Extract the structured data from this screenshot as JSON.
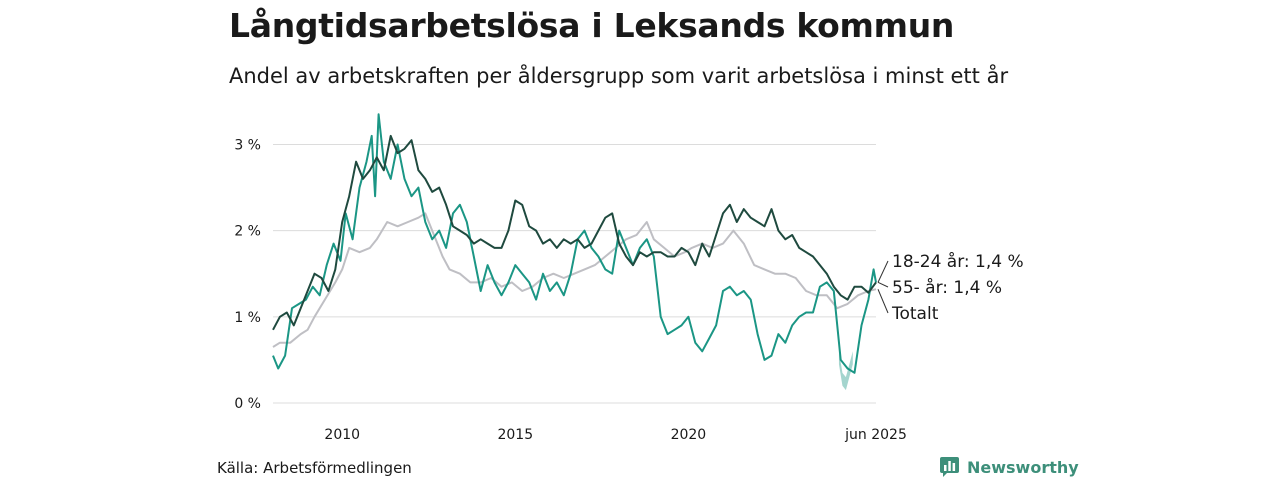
{
  "title": "Långtidsarbetslösa i Leksands kommun",
  "subtitle": "Andel av arbetskraften per åldersgrupp som varit arbetslösa i minst ett år",
  "source": "Källa: Arbetsförmedlingen",
  "brand": "Newsworthy",
  "colors": {
    "young": "#1b9685",
    "old": "#1f4a3f",
    "total": "#bfbfc4",
    "grid": "#dcdcdc",
    "text": "#1a1a1a"
  },
  "chart_data": {
    "type": "line",
    "x_ticks": [
      {
        "x": 2010,
        "label": "2010"
      },
      {
        "x": 2015,
        "label": "2015"
      },
      {
        "x": 2020,
        "label": "2020"
      },
      {
        "x": 2025.42,
        "label": "jun 2025"
      }
    ],
    "y_ticks": [
      {
        "y": 0,
        "label": "0 %"
      },
      {
        "y": 1,
        "label": "1 %"
      },
      {
        "y": 2,
        "label": "2 %"
      },
      {
        "y": 3,
        "label": "3 %"
      }
    ],
    "xlim": [
      2008.0,
      2025.42
    ],
    "ylim": [
      0,
      3.4
    ],
    "grid": true,
    "series": [
      {
        "key": "total",
        "name": "Totalt",
        "label": "Totalt",
        "points": [
          [
            2008.0,
            0.65
          ],
          [
            2008.2,
            0.7
          ],
          [
            2008.5,
            0.7
          ],
          [
            2008.8,
            0.8
          ],
          [
            2009.0,
            0.85
          ],
          [
            2009.2,
            1.0
          ],
          [
            2009.5,
            1.2
          ],
          [
            2009.8,
            1.4
          ],
          [
            2010.0,
            1.55
          ],
          [
            2010.2,
            1.8
          ],
          [
            2010.5,
            1.75
          ],
          [
            2010.8,
            1.8
          ],
          [
            2011.0,
            1.9
          ],
          [
            2011.3,
            2.1
          ],
          [
            2011.6,
            2.05
          ],
          [
            2011.9,
            2.1
          ],
          [
            2012.2,
            2.15
          ],
          [
            2012.4,
            2.2
          ],
          [
            2012.6,
            2.0
          ],
          [
            2012.9,
            1.7
          ],
          [
            2013.1,
            1.55
          ],
          [
            2013.4,
            1.5
          ],
          [
            2013.7,
            1.4
          ],
          [
            2014.0,
            1.4
          ],
          [
            2014.3,
            1.45
          ],
          [
            2014.6,
            1.35
          ],
          [
            2014.9,
            1.4
          ],
          [
            2015.2,
            1.3
          ],
          [
            2015.5,
            1.35
          ],
          [
            2015.8,
            1.45
          ],
          [
            2016.1,
            1.5
          ],
          [
            2016.4,
            1.45
          ],
          [
            2016.7,
            1.5
          ],
          [
            2017.0,
            1.55
          ],
          [
            2017.3,
            1.6
          ],
          [
            2017.6,
            1.7
          ],
          [
            2017.9,
            1.8
          ],
          [
            2018.2,
            1.9
          ],
          [
            2018.5,
            1.95
          ],
          [
            2018.8,
            2.1
          ],
          [
            2019.0,
            1.9
          ],
          [
            2019.3,
            1.8
          ],
          [
            2019.6,
            1.7
          ],
          [
            2019.9,
            1.75
          ],
          [
            2020.1,
            1.8
          ],
          [
            2020.4,
            1.85
          ],
          [
            2020.7,
            1.8
          ],
          [
            2021.0,
            1.85
          ],
          [
            2021.3,
            2.0
          ],
          [
            2021.6,
            1.85
          ],
          [
            2021.9,
            1.6
          ],
          [
            2022.2,
            1.55
          ],
          [
            2022.5,
            1.5
          ],
          [
            2022.8,
            1.5
          ],
          [
            2023.1,
            1.45
          ],
          [
            2023.4,
            1.3
          ],
          [
            2023.7,
            1.25
          ],
          [
            2024.0,
            1.25
          ],
          [
            2024.3,
            1.1
          ],
          [
            2024.6,
            1.15
          ],
          [
            2024.9,
            1.25
          ],
          [
            2025.2,
            1.3
          ],
          [
            2025.42,
            1.32
          ]
        ]
      },
      {
        "key": "young",
        "name": "18-24 år",
        "label": "18-24 år: 1,4 %",
        "points": [
          [
            2008.0,
            0.55
          ],
          [
            2008.15,
            0.4
          ],
          [
            2008.35,
            0.55
          ],
          [
            2008.55,
            1.1
          ],
          [
            2008.75,
            1.15
          ],
          [
            2008.95,
            1.2
          ],
          [
            2009.15,
            1.35
          ],
          [
            2009.35,
            1.25
          ],
          [
            2009.55,
            1.6
          ],
          [
            2009.75,
            1.85
          ],
          [
            2009.95,
            1.65
          ],
          [
            2010.1,
            2.2
          ],
          [
            2010.3,
            1.9
          ],
          [
            2010.5,
            2.5
          ],
          [
            2010.7,
            2.8
          ],
          [
            2010.85,
            3.1
          ],
          [
            2010.95,
            2.4
          ],
          [
            2011.05,
            3.35
          ],
          [
            2011.2,
            2.8
          ],
          [
            2011.4,
            2.6
          ],
          [
            2011.6,
            3.0
          ],
          [
            2011.8,
            2.6
          ],
          [
            2012.0,
            2.4
          ],
          [
            2012.2,
            2.5
          ],
          [
            2012.4,
            2.1
          ],
          [
            2012.6,
            1.9
          ],
          [
            2012.8,
            2.0
          ],
          [
            2013.0,
            1.8
          ],
          [
            2013.2,
            2.2
          ],
          [
            2013.4,
            2.3
          ],
          [
            2013.6,
            2.1
          ],
          [
            2013.8,
            1.7
          ],
          [
            2014.0,
            1.3
          ],
          [
            2014.2,
            1.6
          ],
          [
            2014.4,
            1.4
          ],
          [
            2014.6,
            1.25
          ],
          [
            2014.8,
            1.4
          ],
          [
            2015.0,
            1.6
          ],
          [
            2015.2,
            1.5
          ],
          [
            2015.4,
            1.4
          ],
          [
            2015.6,
            1.2
          ],
          [
            2015.8,
            1.5
          ],
          [
            2016.0,
            1.3
          ],
          [
            2016.2,
            1.4
          ],
          [
            2016.4,
            1.25
          ],
          [
            2016.6,
            1.5
          ],
          [
            2016.8,
            1.9
          ],
          [
            2017.0,
            2.0
          ],
          [
            2017.2,
            1.8
          ],
          [
            2017.4,
            1.7
          ],
          [
            2017.6,
            1.55
          ],
          [
            2017.8,
            1.5
          ],
          [
            2018.0,
            2.0
          ],
          [
            2018.2,
            1.8
          ],
          [
            2018.4,
            1.6
          ],
          [
            2018.6,
            1.8
          ],
          [
            2018.8,
            1.9
          ],
          [
            2019.0,
            1.7
          ],
          [
            2019.2,
            1.0
          ],
          [
            2019.4,
            0.8
          ],
          [
            2019.6,
            0.85
          ],
          [
            2019.8,
            0.9
          ],
          [
            2020.0,
            1.0
          ],
          [
            2020.2,
            0.7
          ],
          [
            2020.4,
            0.6
          ],
          [
            2020.6,
            0.75
          ],
          [
            2020.8,
            0.9
          ],
          [
            2021.0,
            1.3
          ],
          [
            2021.2,
            1.35
          ],
          [
            2021.4,
            1.25
          ],
          [
            2021.6,
            1.3
          ],
          [
            2021.8,
            1.2
          ],
          [
            2022.0,
            0.8
          ],
          [
            2022.2,
            0.5
          ],
          [
            2022.4,
            0.55
          ],
          [
            2022.6,
            0.8
          ],
          [
            2022.8,
            0.7
          ],
          [
            2023.0,
            0.9
          ],
          [
            2023.2,
            1.0
          ],
          [
            2023.4,
            1.05
          ],
          [
            2023.6,
            1.05
          ],
          [
            2023.8,
            1.35
          ],
          [
            2024.0,
            1.4
          ],
          [
            2024.2,
            1.3
          ],
          [
            2024.4,
            0.5
          ],
          [
            2024.6,
            0.4
          ],
          [
            2024.8,
            0.35
          ],
          [
            2025.0,
            0.9
          ],
          [
            2025.2,
            1.2
          ],
          [
            2025.35,
            1.55
          ],
          [
            2025.42,
            1.4
          ]
        ]
      },
      {
        "key": "old",
        "name": "55- år",
        "label": "55- år: 1,4 %",
        "points": [
          [
            2008.0,
            0.85
          ],
          [
            2008.2,
            1.0
          ],
          [
            2008.4,
            1.05
          ],
          [
            2008.6,
            0.9
          ],
          [
            2008.8,
            1.1
          ],
          [
            2009.0,
            1.3
          ],
          [
            2009.2,
            1.5
          ],
          [
            2009.4,
            1.45
          ],
          [
            2009.6,
            1.3
          ],
          [
            2009.8,
            1.55
          ],
          [
            2010.0,
            2.1
          ],
          [
            2010.2,
            2.4
          ],
          [
            2010.4,
            2.8
          ],
          [
            2010.6,
            2.6
          ],
          [
            2010.8,
            2.7
          ],
          [
            2011.0,
            2.85
          ],
          [
            2011.2,
            2.7
          ],
          [
            2011.4,
            3.1
          ],
          [
            2011.6,
            2.9
          ],
          [
            2011.8,
            2.95
          ],
          [
            2012.0,
            3.05
          ],
          [
            2012.2,
            2.7
          ],
          [
            2012.4,
            2.6
          ],
          [
            2012.6,
            2.45
          ],
          [
            2012.8,
            2.5
          ],
          [
            2013.0,
            2.3
          ],
          [
            2013.2,
            2.05
          ],
          [
            2013.4,
            2.0
          ],
          [
            2013.6,
            1.95
          ],
          [
            2013.8,
            1.85
          ],
          [
            2014.0,
            1.9
          ],
          [
            2014.2,
            1.85
          ],
          [
            2014.4,
            1.8
          ],
          [
            2014.6,
            1.8
          ],
          [
            2014.8,
            2.0
          ],
          [
            2015.0,
            2.35
          ],
          [
            2015.2,
            2.3
          ],
          [
            2015.4,
            2.05
          ],
          [
            2015.6,
            2.0
          ],
          [
            2015.8,
            1.85
          ],
          [
            2016.0,
            1.9
          ],
          [
            2016.2,
            1.8
          ],
          [
            2016.4,
            1.9
          ],
          [
            2016.6,
            1.85
          ],
          [
            2016.8,
            1.9
          ],
          [
            2017.0,
            1.8
          ],
          [
            2017.2,
            1.85
          ],
          [
            2017.4,
            2.0
          ],
          [
            2017.6,
            2.15
          ],
          [
            2017.8,
            2.2
          ],
          [
            2018.0,
            1.85
          ],
          [
            2018.2,
            1.7
          ],
          [
            2018.4,
            1.6
          ],
          [
            2018.6,
            1.75
          ],
          [
            2018.8,
            1.7
          ],
          [
            2019.0,
            1.75
          ],
          [
            2019.2,
            1.75
          ],
          [
            2019.4,
            1.7
          ],
          [
            2019.6,
            1.7
          ],
          [
            2019.8,
            1.8
          ],
          [
            2020.0,
            1.75
          ],
          [
            2020.2,
            1.6
          ],
          [
            2020.4,
            1.85
          ],
          [
            2020.6,
            1.7
          ],
          [
            2020.8,
            1.95
          ],
          [
            2021.0,
            2.2
          ],
          [
            2021.2,
            2.3
          ],
          [
            2021.4,
            2.1
          ],
          [
            2021.6,
            2.25
          ],
          [
            2021.8,
            2.15
          ],
          [
            2022.0,
            2.1
          ],
          [
            2022.2,
            2.05
          ],
          [
            2022.4,
            2.25
          ],
          [
            2022.6,
            2.0
          ],
          [
            2022.8,
            1.9
          ],
          [
            2023.0,
            1.95
          ],
          [
            2023.2,
            1.8
          ],
          [
            2023.4,
            1.75
          ],
          [
            2023.6,
            1.7
          ],
          [
            2023.8,
            1.6
          ],
          [
            2024.0,
            1.5
          ],
          [
            2024.2,
            1.35
          ],
          [
            2024.4,
            1.25
          ],
          [
            2024.6,
            1.2
          ],
          [
            2024.8,
            1.35
          ],
          [
            2025.0,
            1.35
          ],
          [
            2025.2,
            1.28
          ],
          [
            2025.42,
            1.4
          ]
        ]
      }
    ],
    "uncertainty_band": {
      "series": "young",
      "points": [
        [
          2024.35,
          0.6,
          0.45
        ],
        [
          2024.45,
          0.35,
          0.2
        ],
        [
          2024.55,
          0.3,
          0.15
        ],
        [
          2024.65,
          0.45,
          0.3
        ],
        [
          2024.75,
          0.6,
          0.45
        ]
      ]
    }
  }
}
